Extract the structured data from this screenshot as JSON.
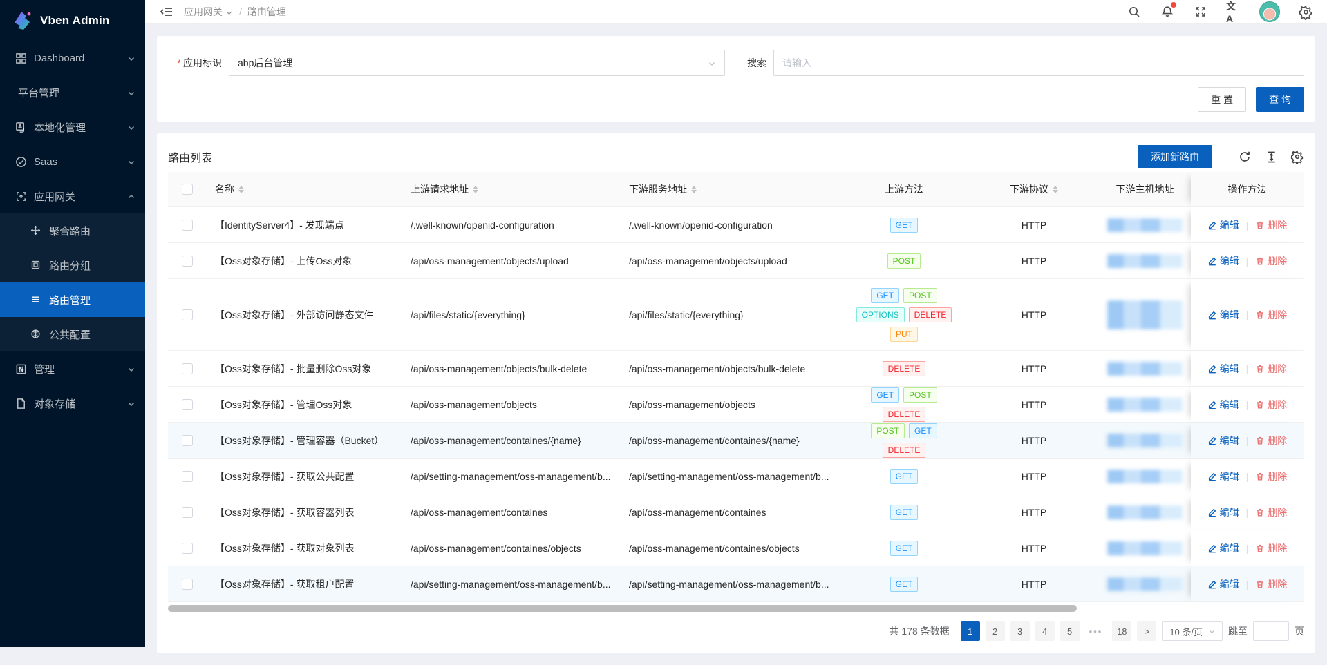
{
  "colors": {
    "primary": "#0960bd",
    "sidebar_bg": "#001529",
    "sidebar_submenu_bg": "#0c2135",
    "page_bg": "#eef0f5",
    "danger": "#ed6f6f",
    "notification_dot": "#f5483b"
  },
  "sidebar": {
    "logo_text": "Vben Admin",
    "menu": [
      {
        "label": "Dashboard",
        "icon": "dashboard-icon",
        "chevron": "down"
      },
      {
        "label": "平台管理",
        "icon": null,
        "chevron": "down"
      },
      {
        "label": "本地化管理",
        "icon": "localization-icon",
        "chevron": "down"
      },
      {
        "label": "Saas",
        "icon": "saas-icon",
        "chevron": "down"
      },
      {
        "label": "应用网关",
        "icon": "gateway-icon",
        "chevron": "up",
        "expanded": true,
        "children": [
          {
            "label": "聚合路由",
            "icon": "aggregate-route-icon",
            "active": false
          },
          {
            "label": "路由分组",
            "icon": "route-group-icon",
            "active": false
          },
          {
            "label": "路由管理",
            "icon": "route-list-icon",
            "active": true
          },
          {
            "label": "公共配置",
            "icon": "public-config-icon",
            "active": false
          }
        ]
      },
      {
        "label": "管理",
        "icon": "manage-icon",
        "chevron": "down"
      },
      {
        "label": "对象存储",
        "icon": "object-storage-icon",
        "chevron": "down"
      }
    ]
  },
  "topbar": {
    "breadcrumb": [
      {
        "label": "应用网关",
        "has_chevron": true
      },
      {
        "label": "路由管理",
        "has_chevron": false
      }
    ],
    "icons": [
      "search-icon",
      "bell-icon",
      "fullscreen-icon",
      "translate-icon",
      "avatar",
      "gear-icon"
    ],
    "translate_glyph": "文A",
    "has_notification_dot": true
  },
  "filter": {
    "app_id": {
      "required": true,
      "label": "应用标识",
      "value": "abp后台管理"
    },
    "search": {
      "label": "搜索",
      "placeholder": "请输入"
    },
    "reset_button": "重 置",
    "submit_button": "查 询"
  },
  "table": {
    "title": "路由列表",
    "add_button": "添加新路由",
    "toolbar_icons": [
      "redo-icon",
      "column-height-icon",
      "settings-gear-icon"
    ],
    "columns": [
      {
        "key": "checkbox",
        "label": "",
        "sortable": false
      },
      {
        "key": "name",
        "label": "名称",
        "sortable": true
      },
      {
        "key": "upstream",
        "label": "上游请求地址",
        "sortable": true
      },
      {
        "key": "downstream",
        "label": "下游服务地址",
        "sortable": true
      },
      {
        "key": "methods",
        "label": "上游方法",
        "sortable": false
      },
      {
        "key": "protocol",
        "label": "下游协议",
        "sortable": true
      },
      {
        "key": "host",
        "label": "下游主机地址",
        "sortable": false
      },
      {
        "key": "actions",
        "label": "操作方法",
        "sortable": false
      }
    ],
    "host_redacted": true,
    "actions": {
      "edit": "编辑",
      "delete": "删除"
    },
    "rows": [
      {
        "name": "【IdentityServer4】- 发现端点",
        "upstream": "/.well-known/openid-configuration",
        "downstream": "/.well-known/openid-configuration",
        "methods": [
          "GET"
        ],
        "protocol": "HTTP",
        "tall": false,
        "highlighted": false
      },
      {
        "name": "【Oss对象存储】- 上传Oss对象",
        "upstream": "/api/oss-management/objects/upload",
        "downstream": "/api/oss-management/objects/upload",
        "methods": [
          "POST"
        ],
        "protocol": "HTTP",
        "tall": false,
        "highlighted": false
      },
      {
        "name": "【Oss对象存储】- 外部访问静态文件",
        "upstream": "/api/files/static/{everything}",
        "downstream": "/api/files/static/{everything}",
        "methods": [
          "GET",
          "POST",
          "OPTIONS",
          "DELETE",
          "PUT"
        ],
        "protocol": "HTTP",
        "tall": true,
        "highlighted": false
      },
      {
        "name": "【Oss对象存储】- 批量删除Oss对象",
        "upstream": "/api/oss-management/objects/bulk-delete",
        "downstream": "/api/oss-management/objects/bulk-delete",
        "methods": [
          "DELETE"
        ],
        "protocol": "HTTP",
        "tall": false,
        "highlighted": false
      },
      {
        "name": "【Oss对象存储】- 管理Oss对象",
        "upstream": "/api/oss-management/objects",
        "downstream": "/api/oss-management/objects",
        "methods": [
          "GET",
          "POST",
          "DELETE"
        ],
        "protocol": "HTTP",
        "tall": false,
        "highlighted": false
      },
      {
        "name": "【Oss对象存储】- 管理容器（Bucket）",
        "upstream": "/api/oss-management/containes/{name}",
        "downstream": "/api/oss-management/containes/{name}",
        "methods": [
          "POST",
          "GET",
          "DELETE"
        ],
        "protocol": "HTTP",
        "tall": false,
        "highlighted": true
      },
      {
        "name": "【Oss对象存储】- 获取公共配置",
        "upstream": "/api/setting-management/oss-management/b...",
        "downstream": "/api/setting-management/oss-management/b...",
        "methods": [
          "GET"
        ],
        "protocol": "HTTP",
        "tall": false,
        "highlighted": false
      },
      {
        "name": "【Oss对象存储】- 获取容器列表",
        "upstream": "/api/oss-management/containes",
        "downstream": "/api/oss-management/containes",
        "methods": [
          "GET"
        ],
        "protocol": "HTTP",
        "tall": false,
        "highlighted": false
      },
      {
        "name": "【Oss对象存储】- 获取对象列表",
        "upstream": "/api/oss-management/containes/objects",
        "downstream": "/api/oss-management/containes/objects",
        "methods": [
          "GET"
        ],
        "protocol": "HTTP",
        "tall": false,
        "highlighted": false
      },
      {
        "name": "【Oss对象存储】- 获取租户配置",
        "upstream": "/api/setting-management/oss-management/b...",
        "downstream": "/api/setting-management/oss-management/b...",
        "methods": [
          "GET"
        ],
        "protocol": "HTTP",
        "tall": false,
        "highlighted": true
      }
    ]
  },
  "methods_palette": {
    "GET": {
      "text": "#1890ff",
      "border": "#91d5ff",
      "bg": "#e6f7ff"
    },
    "POST": {
      "text": "#52c41a",
      "border": "#b7eb8f",
      "bg": "#f6ffed"
    },
    "OPTIONS": {
      "text": "#13c2c2",
      "border": "#87e8de",
      "bg": "#e6fffb"
    },
    "DELETE": {
      "text": "#f5222d",
      "border": "#ffa39e",
      "bg": "#fff1f0"
    },
    "PUT": {
      "text": "#fa8c16",
      "border": "#ffd591",
      "bg": "#fff7e6"
    }
  },
  "pagination": {
    "total_text": "共 178 条数据",
    "pages": [
      "1",
      "2",
      "3",
      "4",
      "5",
      "•••",
      "18"
    ],
    "active_page": "1",
    "next_label": ">",
    "page_size": "10 条/页",
    "jump_label": "跳至",
    "jump_unit": "页"
  }
}
